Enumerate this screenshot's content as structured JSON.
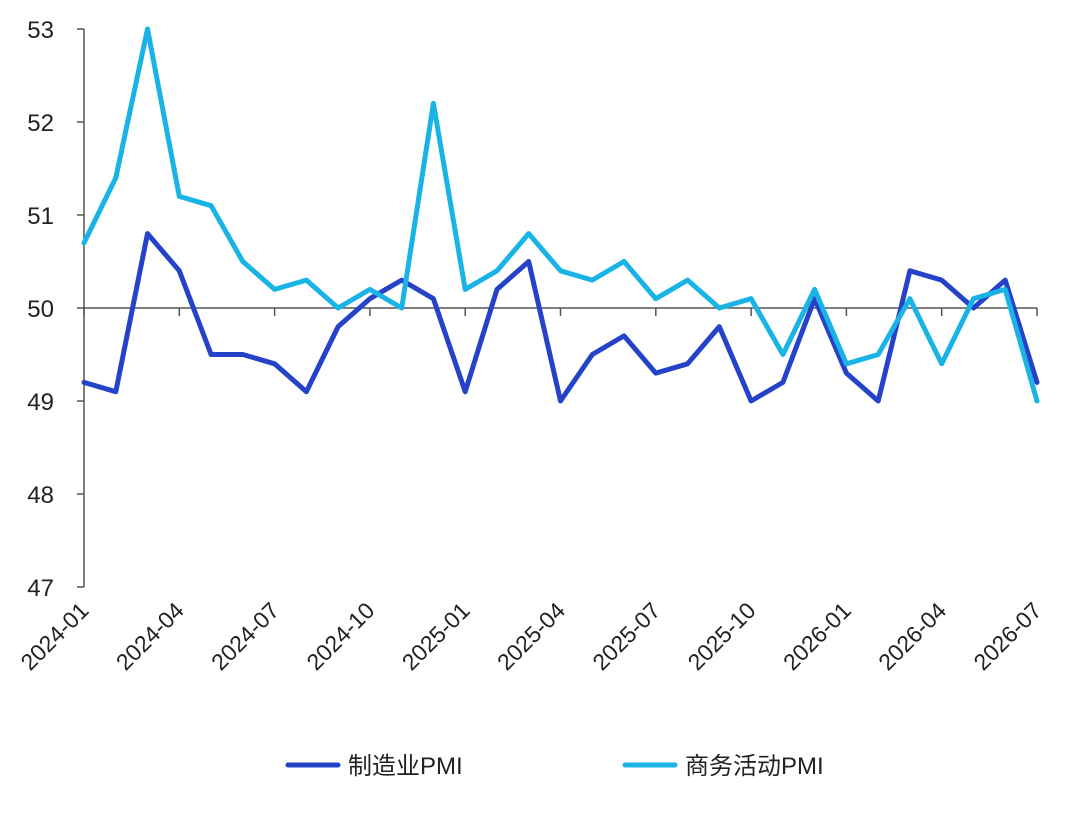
{
  "colors": {
    "manufacturing": "#2443c9",
    "services": "#19b3e6",
    "axis": "#555555",
    "text": "#222222"
  },
  "chart_data": {
    "type": "line",
    "title": "",
    "xlabel": "",
    "ylabel": "",
    "ylim": [
      47,
      53
    ],
    "yticks": [
      "47",
      "48",
      "49",
      "50",
      "51",
      "52",
      "53"
    ],
    "xticks": [
      "2024-01",
      "2024-04",
      "2024-07",
      "2024-10",
      "2025-01",
      "2025-04",
      "2025-07",
      "2025-10",
      "2026-01",
      "2026-04",
      "2026-07"
    ],
    "x": [
      "2024-01",
      "2024-02",
      "2024-03",
      "2024-04",
      "2024-05",
      "2024-06",
      "2024-07",
      "2024-08",
      "2024-09",
      "2024-10",
      "2024-11",
      "2024-12",
      "2025-01",
      "2025-02",
      "2025-03",
      "2025-04",
      "2025-05",
      "2025-06",
      "2025-07",
      "2025-08",
      "2025-09",
      "2025-10",
      "2025-11",
      "2025-12",
      "2026-01",
      "2026-02",
      "2026-03",
      "2026-04",
      "2026-05",
      "2026-06",
      "2026-07"
    ],
    "reference_line": 50,
    "legend_position": "bottom",
    "series": [
      {
        "name": "制造业PMI",
        "color": "#2443c9",
        "values": [
          49.2,
          49.1,
          50.8,
          50.4,
          49.5,
          49.5,
          49.4,
          49.1,
          49.8,
          50.1,
          50.3,
          50.1,
          49.1,
          50.2,
          50.5,
          49.0,
          49.5,
          49.7,
          49.3,
          49.4,
          49.8,
          49.0,
          49.2,
          50.1,
          49.3,
          49.0,
          50.4,
          50.3,
          50.0,
          50.3,
          49.2
        ]
      },
      {
        "name": "商务活动PMI",
        "color": "#19b3e6",
        "values": [
          50.7,
          51.4,
          53.0,
          51.2,
          51.1,
          50.5,
          50.2,
          50.3,
          50.0,
          50.2,
          50.0,
          52.2,
          50.2,
          50.4,
          50.8,
          50.4,
          50.3,
          50.5,
          50.1,
          50.3,
          50.0,
          50.1,
          49.5,
          50.2,
          49.4,
          49.5,
          50.1,
          49.4,
          50.1,
          50.2,
          49.0
        ]
      }
    ]
  }
}
